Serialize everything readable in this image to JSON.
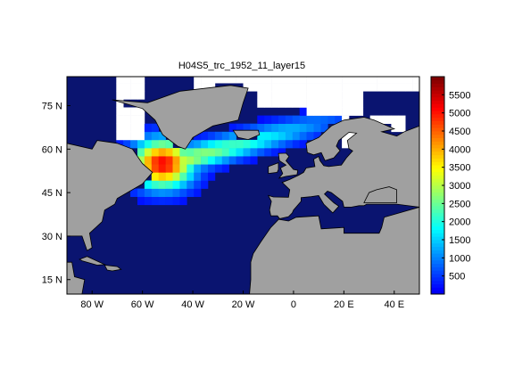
{
  "chart_data": {
    "type": "heatmap",
    "title": "H04S5_trc_1952_11_layer15",
    "xlabel": "",
    "ylabel": "",
    "xlim": [
      -90,
      50
    ],
    "ylim": [
      10,
      85
    ],
    "x_ticks": [
      {
        "value": -80,
        "label": "80 W"
      },
      {
        "value": -60,
        "label": "60 W"
      },
      {
        "value": -40,
        "label": "40 W"
      },
      {
        "value": -20,
        "label": "20 W"
      },
      {
        "value": 0,
        "label": "0"
      },
      {
        "value": 20,
        "label": "20 E"
      },
      {
        "value": 40,
        "label": "40 E"
      }
    ],
    "y_ticks": [
      {
        "value": 15,
        "label": "15 N"
      },
      {
        "value": 30,
        "label": "30 N"
      },
      {
        "value": 45,
        "label": "45 N"
      },
      {
        "value": 60,
        "label": "60 N"
      },
      {
        "value": 75,
        "label": "75 N"
      }
    ],
    "colorbar": {
      "min": 0,
      "max": 6000,
      "colormap": "jet",
      "ticks": [
        500,
        1000,
        1500,
        2000,
        2500,
        3000,
        3500,
        4000,
        4500,
        5000,
        5500
      ]
    },
    "land_color": "#a0a0a0",
    "nodata_color": "#ffffff",
    "field_peak": {
      "lon": -52,
      "lat": 55,
      "value": 5200
    },
    "grid": false
  }
}
